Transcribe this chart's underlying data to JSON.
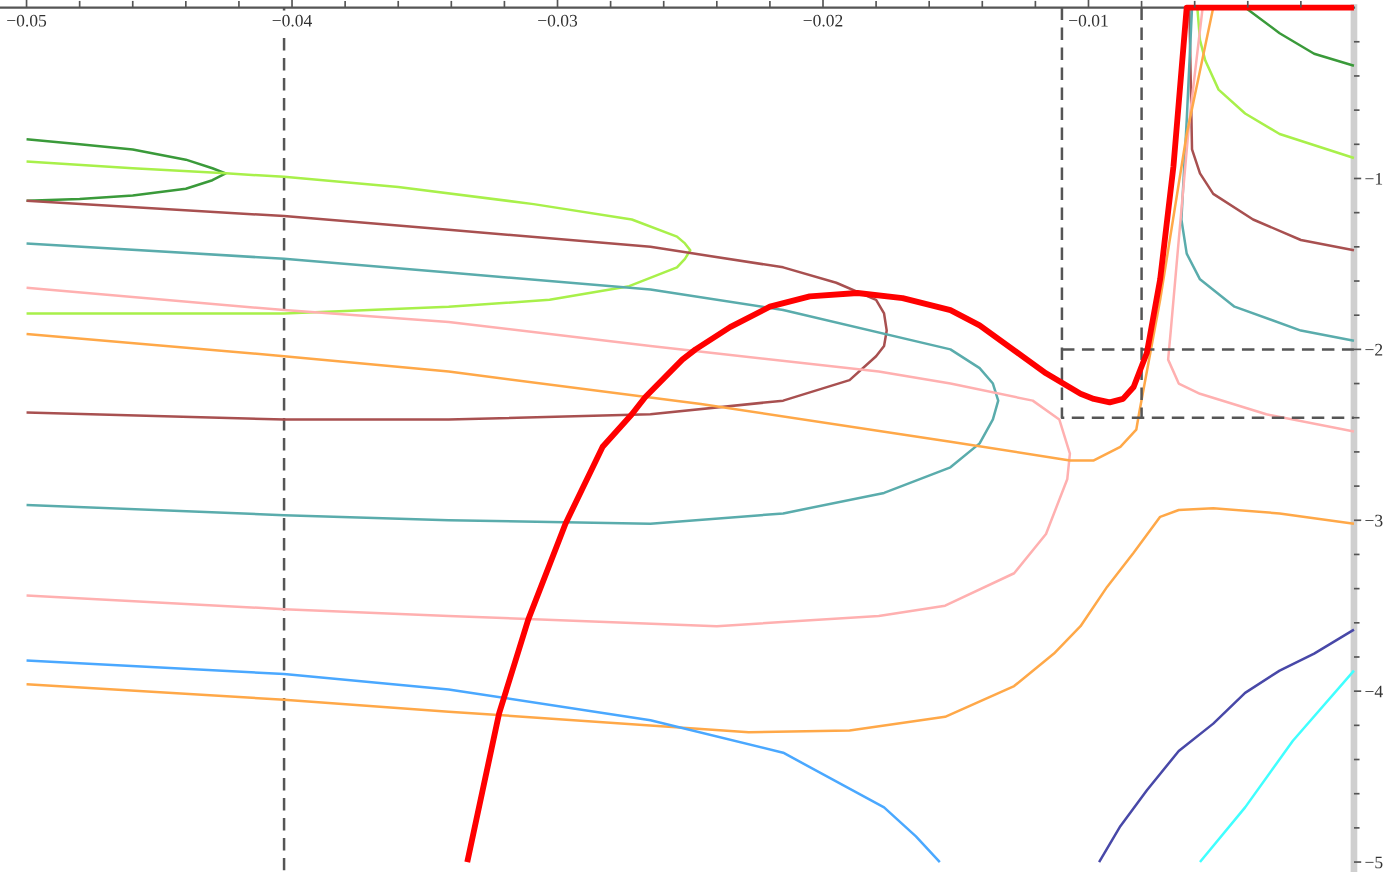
{
  "chart_data": {
    "type": "line",
    "xlim": [
      -0.051,
      0
    ],
    "ylim": [
      -5.05,
      0
    ],
    "xticks": [
      {
        "value": -0.05,
        "label": "−0.05"
      },
      {
        "value": -0.048,
        "label": null
      },
      {
        "value": -0.046,
        "label": null
      },
      {
        "value": -0.044,
        "label": null
      },
      {
        "value": -0.042,
        "label": null
      },
      {
        "value": -0.04,
        "label": "−0.04"
      },
      {
        "value": -0.038,
        "label": null
      },
      {
        "value": -0.036,
        "label": null
      },
      {
        "value": -0.034,
        "label": null
      },
      {
        "value": -0.032,
        "label": null
      },
      {
        "value": -0.03,
        "label": "−0.03"
      },
      {
        "value": -0.028,
        "label": null
      },
      {
        "value": -0.026,
        "label": null
      },
      {
        "value": -0.024,
        "label": null
      },
      {
        "value": -0.022,
        "label": null
      },
      {
        "value": -0.02,
        "label": "−0.02"
      },
      {
        "value": -0.018,
        "label": null
      },
      {
        "value": -0.016,
        "label": null
      },
      {
        "value": -0.014,
        "label": null
      },
      {
        "value": -0.012,
        "label": null
      },
      {
        "value": -0.01,
        "label": "−0.01"
      },
      {
        "value": -0.008,
        "label": null
      },
      {
        "value": -0.006,
        "label": null
      },
      {
        "value": -0.004,
        "label": null
      },
      {
        "value": -0.002,
        "label": null
      }
    ],
    "yticks": [
      {
        "value": -0.2,
        "label": null
      },
      {
        "value": -0.4,
        "label": null
      },
      {
        "value": -0.6,
        "label": null
      },
      {
        "value": -0.8,
        "label": null
      },
      {
        "value": -1,
        "label": "−1"
      },
      {
        "value": -1.2,
        "label": null
      },
      {
        "value": -1.4,
        "label": null
      },
      {
        "value": -1.6,
        "label": null
      },
      {
        "value": -1.8,
        "label": null
      },
      {
        "value": -2,
        "label": "−2"
      },
      {
        "value": -2.2,
        "label": null
      },
      {
        "value": -2.4,
        "label": null
      },
      {
        "value": -2.6,
        "label": null
      },
      {
        "value": -2.8,
        "label": null
      },
      {
        "value": -3,
        "label": "−3"
      },
      {
        "value": -3.2,
        "label": null
      },
      {
        "value": -3.4,
        "label": null
      },
      {
        "value": -3.6,
        "label": null
      },
      {
        "value": -3.8,
        "label": null
      },
      {
        "value": -4,
        "label": "−4"
      },
      {
        "value": -4.2,
        "label": null
      },
      {
        "value": -4.4,
        "label": null
      },
      {
        "value": -4.6,
        "label": null
      },
      {
        "value": -4.8,
        "label": null
      },
      {
        "value": -5,
        "label": "−5"
      }
    ],
    "ref_lines": [
      {
        "axis": "x",
        "value": -0.0403,
        "color": "#555555",
        "line_style": "dashed"
      }
    ],
    "series": [
      {
        "color": "#ff0000",
        "line_style": "solid",
        "x": [
          -0.0334,
          -0.0322,
          -0.0311,
          -0.0297,
          -0.0283,
          -0.0272,
          -0.0267,
          -0.0253,
          -0.0248,
          -0.0235,
          -0.022,
          -0.0205,
          -0.0187,
          -0.017,
          -0.0152,
          -0.0141,
          -0.0116,
          -0.0103,
          -0.0098,
          -0.0092,
          -0.0087,
          -0.0083,
          -0.0081,
          -0.0078,
          -0.0073,
          -0.0068,
          -0.0063,
          0
        ],
        "values": [
          -5,
          -4.13,
          -3.58,
          -3.02,
          -2.57,
          -2.38,
          -2.28,
          -2.06,
          -2.0,
          -1.87,
          -1.75,
          -1.69,
          -1.67,
          -1.7,
          -1.77,
          -1.86,
          -2.14,
          -2.26,
          -2.29,
          -2.31,
          -2.29,
          -2.22,
          -2.14,
          -2.02,
          -1.59,
          -0.93,
          0,
          0
        ]
      },
      {
        "color": "#3a9a3a",
        "line_style": "solid",
        "x": [
          -0.05,
          -0.048,
          -0.046,
          -0.044,
          -0.043,
          -0.0425,
          -0.043,
          -0.044,
          -0.046,
          -0.048,
          -0.05
        ],
        "values": [
          -0.77,
          -0.8,
          -0.83,
          -0.89,
          -0.94,
          -0.97,
          -1.01,
          -1.06,
          -1.1,
          -1.12,
          -1.13
        ]
      },
      {
        "color": "#3a9a3a",
        "line_style": "solid",
        "x": [
          -0.0041,
          -0.0028,
          -0.0015,
          0
        ],
        "values": [
          0,
          -0.15,
          -0.27,
          -0.34
        ]
      },
      {
        "color": "#a8f04a",
        "line_style": "solid",
        "x": [
          -0.05,
          -0.046,
          -0.0425,
          -0.0403,
          -0.036,
          -0.0309,
          -0.0272,
          -0.0255,
          -0.0252,
          -0.025,
          -0.0252,
          -0.0255,
          -0.0273,
          -0.0303,
          -0.0341,
          -0.0403,
          -0.046,
          -0.05
        ],
        "values": [
          -0.9,
          -0.94,
          -0.97,
          -0.99,
          -1.05,
          -1.15,
          -1.24,
          -1.34,
          -1.38,
          -1.42,
          -1.47,
          -1.52,
          -1.63,
          -1.71,
          -1.75,
          -1.79,
          -1.79,
          -1.79
        ]
      },
      {
        "color": "#a8f04a",
        "line_style": "solid",
        "x": [
          -0.0059,
          -0.0058,
          -0.0056,
          -0.0051,
          -0.0041,
          -0.0028,
          0
        ],
        "values": [
          0,
          -0.19,
          -0.31,
          -0.48,
          -0.62,
          -0.74,
          -0.88
        ]
      },
      {
        "color": "#a85050",
        "line_style": "solid",
        "x": [
          -0.05,
          -0.0403,
          -0.0341,
          -0.0265,
          -0.0215,
          -0.0195,
          -0.018,
          -0.0177,
          -0.0176,
          -0.0177,
          -0.018,
          -0.019,
          -0.0215,
          -0.0265,
          -0.0341,
          -0.0403,
          -0.05
        ],
        "values": [
          -1.13,
          -1.22,
          -1.3,
          -1.4,
          -1.52,
          -1.61,
          -1.71,
          -1.79,
          -1.89,
          -1.98,
          -2.04,
          -2.18,
          -2.3,
          -2.38,
          -2.41,
          -2.41,
          -2.37
        ]
      },
      {
        "color": "#a85050",
        "line_style": "solid",
        "x": [
          -0.0062,
          -0.0061,
          -0.0058,
          -0.0053,
          -0.0038,
          -0.002,
          0
        ],
        "values": [
          0,
          -0.83,
          -0.97,
          -1.09,
          -1.24,
          -1.36,
          -1.42
        ]
      },
      {
        "color": "#5aacac",
        "line_style": "solid",
        "x": [
          -0.05,
          -0.0403,
          -0.0341,
          -0.0265,
          -0.0215,
          -0.0152,
          -0.0141,
          -0.0136,
          -0.0134,
          -0.0136,
          -0.0141,
          -0.0152,
          -0.0177,
          -0.0215,
          -0.0265,
          -0.0341,
          -0.0403,
          -0.05
        ],
        "values": [
          -1.38,
          -1.47,
          -1.55,
          -1.65,
          -1.77,
          -2.0,
          -2.11,
          -2.2,
          -2.3,
          -2.41,
          -2.55,
          -2.69,
          -2.84,
          -2.96,
          -3.02,
          -3.0,
          -2.97,
          -2.91
        ]
      },
      {
        "color": "#5aacac",
        "line_style": "solid",
        "x": [
          -0.0061,
          -0.0063,
          -0.0065,
          -0.0063,
          -0.0058,
          -0.0045,
          -0.002,
          0
        ],
        "values": [
          0,
          -0.66,
          -1.24,
          -1.44,
          -1.59,
          -1.75,
          -1.89,
          -1.95
        ]
      },
      {
        "color": "#ffb0b0",
        "line_style": "solid",
        "x": [
          -0.05,
          -0.0403,
          -0.0341,
          -0.0265,
          -0.0179,
          -0.0152,
          -0.0121,
          -0.0111,
          -0.0107,
          -0.0108,
          -0.0116,
          -0.0128,
          -0.0154,
          -0.0179,
          -0.024,
          -0.0341,
          -0.0403,
          -0.05
        ],
        "values": [
          -1.64,
          -1.77,
          -1.84,
          -1.98,
          -2.13,
          -2.2,
          -2.3,
          -2.41,
          -2.61,
          -2.76,
          -3.08,
          -3.31,
          -3.5,
          -3.56,
          -3.62,
          -3.56,
          -3.52,
          -3.44
        ]
      },
      {
        "color": "#ffb0b0",
        "line_style": "solid",
        "x": [
          -0.0057,
          -0.0062,
          -0.0066,
          -0.0069,
          -0.007,
          -0.0066,
          -0.0058,
          -0.0033,
          0
        ],
        "values": [
          0,
          -0.66,
          -1.36,
          -1.89,
          -2.06,
          -2.2,
          -2.26,
          -2.38,
          -2.48
        ]
      },
      {
        "color": "#ffa848",
        "line_style": "solid",
        "x": [
          -0.05,
          -0.0403,
          -0.0341,
          -0.0246,
          -0.0152,
          -0.0107,
          -0.0098,
          -0.0088,
          -0.0082,
          -0.0081,
          -0.0073,
          -0.0063,
          -0.0053
        ],
        "values": [
          -1.91,
          -2.04,
          -2.13,
          -2.32,
          -2.54,
          -2.65,
          -2.65,
          -2.57,
          -2.47,
          -2.38,
          -1.71,
          -0.74,
          0
        ]
      },
      {
        "color": "#ffa848",
        "line_style": "solid",
        "x": [
          -0.05,
          -0.0403,
          -0.0341,
          -0.0228,
          -0.019,
          -0.0154,
          -0.0128,
          -0.0113,
          -0.0103,
          -0.0093,
          -0.0083,
          -0.0073,
          -0.0066,
          -0.0053,
          -0.0028,
          0
        ],
        "values": [
          -3.96,
          -4.05,
          -4.12,
          -4.24,
          -4.23,
          -4.15,
          -3.97,
          -3.78,
          -3.62,
          -3.39,
          -3.19,
          -2.98,
          -2.94,
          -2.93,
          -2.96,
          -3.02
        ]
      },
      {
        "color": "#4aa8ff",
        "line_style": "solid",
        "x": [
          -0.05,
          -0.0403,
          -0.0341,
          -0.0265,
          -0.0215,
          -0.0177,
          -0.0165,
          -0.0156
        ],
        "values": [
          -3.82,
          -3.9,
          -3.99,
          -4.17,
          -4.36,
          -4.68,
          -4.85,
          -5
        ]
      },
      {
        "color": "#4848a8",
        "line_style": "solid",
        "x": [
          -0.0096,
          -0.0088,
          -0.0078,
          -0.0066,
          -0.0053,
          -0.0041,
          -0.0028,
          -0.0015,
          0
        ],
        "values": [
          -5,
          -4.79,
          -4.58,
          -4.35,
          -4.19,
          -4.01,
          -3.88,
          -3.78,
          -3.64
        ]
      },
      {
        "color": "#40ffff",
        "line_style": "solid",
        "x": [
          -0.0058,
          -0.0041,
          -0.0023,
          0
        ],
        "values": [
          -5,
          -4.68,
          -4.29,
          -3.88
        ]
      },
      {
        "color": "#555555",
        "line_style": "dashed",
        "x": [
          -0.011,
          -0.011,
          0
        ],
        "values": [
          0,
          -2.4,
          -2.4
        ]
      },
      {
        "color": "#555555",
        "line_style": "dashed",
        "x": [
          -0.011,
          0
        ],
        "values": [
          -2,
          -2
        ]
      },
      {
        "color": "#555555",
        "line_style": "dashed",
        "x": [
          -0.008,
          -0.008
        ],
        "values": [
          0,
          -2.4
        ]
      }
    ]
  }
}
